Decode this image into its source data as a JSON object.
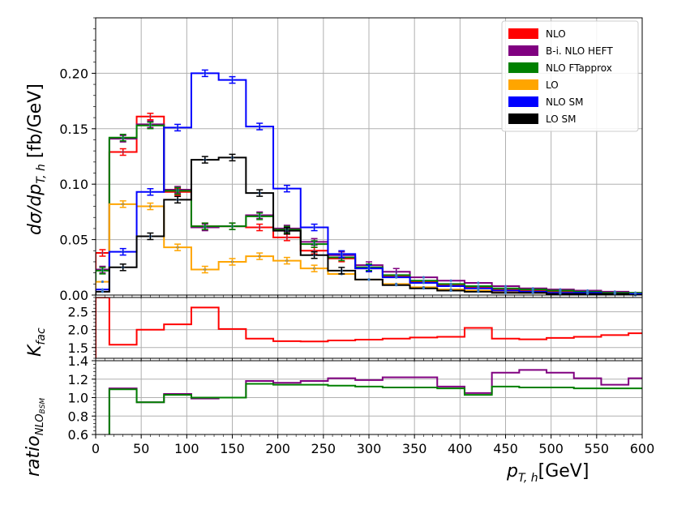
{
  "chart_data": [
    {
      "type": "line",
      "panel": "main",
      "ylabel": "dσ/dp_T,h [fb/GeV]",
      "ylabel_main": "dσ/dp",
      "ylabel_sub": "T, h",
      "ylabel_unit": " [fb/GeV]",
      "xlim": [
        0,
        600
      ],
      "ylim": [
        0,
        0.25
      ],
      "yticks": [
        "0.00",
        "0.05",
        "0.10",
        "0.15",
        "0.20"
      ],
      "yticks_values": [
        0,
        0.05,
        0.1,
        0.15,
        0.2
      ],
      "grid": true,
      "legend_position": "top-right",
      "bin_edges": [
        0,
        15,
        45,
        75,
        105,
        135,
        165,
        195,
        225,
        255,
        285,
        315,
        345,
        375,
        405,
        435,
        465,
        495,
        525,
        555,
        585,
        600
      ],
      "series": [
        {
          "name": "NLO",
          "color": "#ff0000",
          "values": [
            0.038,
            0.129,
            0.161,
            0.093,
            0.062,
            0.062,
            0.061,
            0.052,
            0.04,
            0.033,
            0.024,
            0.017,
            0.012,
            0.009,
            0.007,
            0.005,
            0.004,
            0.003,
            0.002,
            0.002,
            0.001
          ]
        },
        {
          "name": "B-i. NLO HEFT",
          "color": "#800080",
          "values": [
            0.023,
            0.141,
            0.154,
            0.095,
            0.061,
            0.062,
            0.072,
            0.06,
            0.048,
            0.036,
            0.027,
            0.021,
            0.016,
            0.013,
            0.011,
            0.008,
            0.006,
            0.005,
            0.004,
            0.003,
            0.002
          ]
        },
        {
          "name": "NLO FTapprox",
          "color": "#008000",
          "values": [
            0.022,
            0.142,
            0.153,
            0.094,
            0.062,
            0.062,
            0.071,
            0.059,
            0.046,
            0.034,
            0.025,
            0.018,
            0.013,
            0.01,
            0.008,
            0.006,
            0.005,
            0.004,
            0.003,
            0.002,
            0.002
          ]
        },
        {
          "name": "LO",
          "color": "#ffa500",
          "values": [
            0.012,
            0.082,
            0.08,
            0.043,
            0.023,
            0.03,
            0.035,
            0.031,
            0.024,
            0.019,
            0.014,
            0.01,
            0.007,
            0.005,
            0.004,
            0.003,
            0.002,
            0.002,
            0.001,
            0.001,
            0.001
          ]
        },
        {
          "name": "NLO SM",
          "color": "#0000ff",
          "values": [
            0.005,
            0.039,
            0.093,
            0.151,
            0.2,
            0.194,
            0.152,
            0.096,
            0.061,
            0.037,
            0.024,
            0.016,
            0.011,
            0.008,
            0.006,
            0.004,
            0.003,
            0.002,
            0.002,
            0.001,
            0.001
          ]
        },
        {
          "name": "LO SM",
          "color": "#000000",
          "values": [
            0.003,
            0.025,
            0.053,
            0.086,
            0.122,
            0.124,
            0.092,
            0.058,
            0.036,
            0.022,
            0.014,
            0.009,
            0.006,
            0.004,
            0.003,
            0.002,
            0.002,
            0.001,
            0.001,
            0.001,
            0.0
          ]
        }
      ]
    },
    {
      "type": "line",
      "panel": "kfactor",
      "ylabel_main": "K",
      "ylabel_sub": "fac",
      "xlim": [
        0,
        600
      ],
      "ylim": [
        1.2,
        2.9
      ],
      "yticks": [
        "1.5",
        "2.0",
        "2.5"
      ],
      "yticks_values": [
        1.5,
        2.0,
        2.5
      ],
      "grid": true,
      "bin_edges": [
        0,
        15,
        45,
        75,
        105,
        135,
        165,
        195,
        225,
        255,
        285,
        315,
        345,
        375,
        405,
        435,
        465,
        495,
        525,
        555,
        585,
        600
      ],
      "series": [
        {
          "name": "",
          "color": "#ff0000",
          "values": [
            2.9,
            1.58,
            2.0,
            2.15,
            2.62,
            2.02,
            1.75,
            1.68,
            1.67,
            1.7,
            1.72,
            1.75,
            1.78,
            1.8,
            2.05,
            1.75,
            1.73,
            1.77,
            1.8,
            1.85,
            1.9
          ]
        }
      ]
    },
    {
      "type": "line",
      "panel": "ratio",
      "ylabel_main": "ratio",
      "ylabel_sub": "NLO",
      "ylabel_sub2": "BSM",
      "xlabel_main": "p",
      "xlabel_sub": "T, h",
      "xlabel_unit": "[GeV]",
      "xlim": [
        0,
        600
      ],
      "ylim": [
        0.6,
        1.4
      ],
      "yticks": [
        "0.6",
        "0.8",
        "1.0",
        "1.2",
        "1.4"
      ],
      "yticks_values": [
        0.6,
        0.8,
        1.0,
        1.2,
        1.4
      ],
      "xticks": [
        "0",
        "50",
        "100",
        "150",
        "200",
        "250",
        "300",
        "350",
        "400",
        "450",
        "500",
        "550",
        "600"
      ],
      "xticks_values": [
        0,
        50,
        100,
        150,
        200,
        250,
        300,
        350,
        400,
        450,
        500,
        550,
        600
      ],
      "grid": true,
      "bin_edges": [
        0,
        15,
        45,
        75,
        105,
        135,
        165,
        195,
        225,
        255,
        285,
        315,
        345,
        375,
        405,
        435,
        465,
        495,
        525,
        555,
        585,
        600
      ],
      "series": [
        {
          "name": "",
          "color": "#800080",
          "values": [
            0.3,
            1.1,
            0.95,
            1.04,
            0.99,
            1.0,
            1.18,
            1.16,
            1.18,
            1.21,
            1.19,
            1.22,
            1.22,
            1.12,
            1.05,
            1.27,
            1.3,
            1.27,
            1.21,
            1.14,
            1.21
          ]
        },
        {
          "name": "",
          "color": "#008000",
          "values": [
            0.3,
            1.09,
            0.95,
            1.03,
            1.0,
            1.0,
            1.15,
            1.14,
            1.14,
            1.13,
            1.12,
            1.11,
            1.11,
            1.1,
            1.03,
            1.12,
            1.11,
            1.11,
            1.1,
            1.1,
            1.1
          ]
        }
      ]
    }
  ]
}
